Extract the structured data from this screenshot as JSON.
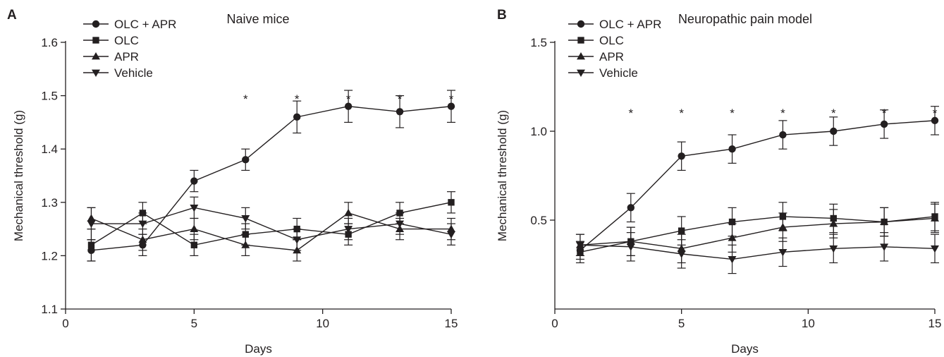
{
  "chart_data": [
    {
      "panel": "A",
      "type": "line",
      "title": "Naive mice",
      "xlabel": "Days",
      "ylabel": "Mechanical threshold (g)",
      "xlim": [
        0,
        15
      ],
      "ylim": [
        1.1,
        1.6
      ],
      "xticks": [
        0,
        5,
        10,
        15
      ],
      "yticks": [
        1.1,
        1.2,
        1.3,
        1.4,
        1.5,
        1.6
      ],
      "ytick_labels": [
        "1.1",
        "1.2",
        "1.3",
        "1.4",
        "1.5",
        "1.6"
      ],
      "x": [
        1,
        3,
        5,
        7,
        9,
        11,
        13,
        15
      ],
      "series": [
        {
          "name": "OLC + APR",
          "marker": "circle",
          "values": [
            1.21,
            1.22,
            1.34,
            1.38,
            1.46,
            1.48,
            1.47,
            1.48
          ],
          "errors": [
            0.02,
            0.02,
            0.02,
            0.02,
            0.03,
            0.03,
            0.03,
            0.03
          ]
        },
        {
          "name": "OLC",
          "marker": "square",
          "values": [
            1.22,
            1.28,
            1.22,
            1.24,
            1.25,
            1.24,
            1.28,
            1.3
          ],
          "errors": [
            0.03,
            0.02,
            0.02,
            0.02,
            0.02,
            0.02,
            0.02,
            0.02
          ]
        },
        {
          "name": "APR",
          "marker": "triangle-up",
          "values": [
            1.27,
            1.23,
            1.25,
            1.22,
            1.21,
            1.28,
            1.25,
            1.25
          ],
          "errors": [
            0.02,
            0.02,
            0.02,
            0.02,
            0.02,
            0.02,
            0.02,
            0.02
          ]
        },
        {
          "name": "Vehicle",
          "marker": "triangle-down",
          "values": [
            1.26,
            1.26,
            1.29,
            1.27,
            1.23,
            1.25,
            1.26,
            1.24
          ],
          "errors": [
            0.03,
            0.02,
            0.02,
            0.02,
            0.02,
            0.02,
            0.02,
            0.02
          ]
        }
      ],
      "significance": {
        "symbol": "*",
        "x": [
          7,
          9,
          11,
          13,
          15
        ]
      }
    },
    {
      "panel": "B",
      "type": "line",
      "title": "Neuropathic pain model",
      "xlabel": "Days",
      "ylabel": "Mechanical threshold (g)",
      "xlim": [
        0,
        15
      ],
      "ylim": [
        0,
        1.5
      ],
      "xticks": [
        0,
        5,
        10,
        15
      ],
      "yticks": [
        0.5,
        1.0,
        1.5
      ],
      "ytick_labels": [
        "0.5",
        "1.0",
        "1.5"
      ],
      "x": [
        1,
        3,
        5,
        7,
        9,
        11,
        13,
        15
      ],
      "series": [
        {
          "name": "OLC + APR",
          "marker": "circle",
          "values": [
            0.33,
            0.57,
            0.86,
            0.9,
            0.98,
            1.0,
            1.04,
            1.06
          ],
          "errors": [
            0.05,
            0.08,
            0.08,
            0.08,
            0.08,
            0.08,
            0.08,
            0.08
          ]
        },
        {
          "name": "OLC",
          "marker": "square",
          "values": [
            0.32,
            0.38,
            0.44,
            0.49,
            0.52,
            0.51,
            0.49,
            0.52
          ],
          "errors": [
            0.06,
            0.08,
            0.08,
            0.08,
            0.08,
            0.08,
            0.08,
            0.08
          ]
        },
        {
          "name": "APR",
          "marker": "triangle-up",
          "values": [
            0.36,
            0.38,
            0.34,
            0.4,
            0.46,
            0.48,
            0.49,
            0.51
          ],
          "errors": [
            0.06,
            0.08,
            0.08,
            0.08,
            0.08,
            0.08,
            0.08,
            0.08
          ]
        },
        {
          "name": "Vehicle",
          "marker": "triangle-down",
          "values": [
            0.36,
            0.35,
            0.31,
            0.28,
            0.32,
            0.34,
            0.35,
            0.34
          ],
          "errors": [
            0.06,
            0.08,
            0.08,
            0.08,
            0.08,
            0.08,
            0.08,
            0.08
          ]
        }
      ],
      "significance": {
        "symbol": "*",
        "x": [
          3,
          5,
          7,
          9,
          11,
          13,
          15
        ]
      }
    }
  ]
}
